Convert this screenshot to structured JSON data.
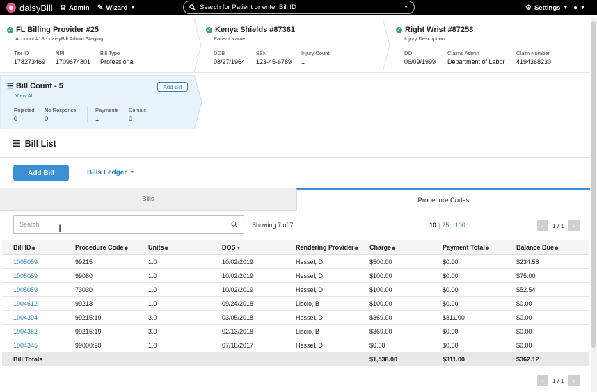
{
  "nav": {
    "brand": "daisyBill",
    "admin": "Admin",
    "wizard": "Wizard",
    "search_placeholder": "Search for Patient or enter Bill ID",
    "settings": "Settings"
  },
  "provider_card": {
    "title": "FL Billing Provider #25",
    "subtitle": "Account #18 - daisyBill Admin Staging",
    "tax_id_label": "Tax ID",
    "tax_id": "178273469",
    "npi_label": "NPI",
    "npi": "1709674801",
    "bill_type_label": "Bill Type",
    "bill_type": "Professional"
  },
  "patient_card": {
    "title": "Kenya Shields #87361",
    "subtitle": "Patient Name",
    "dob_label": "DOB",
    "dob": "08/27/1964",
    "ssn_label": "SSN",
    "ssn": "123-45-6789",
    "injury_count_label": "Injury Count",
    "injury_count": "1"
  },
  "injury_card": {
    "title": "Right Wrist #87258",
    "subtitle": "Injury Description",
    "doi_label": "DOI",
    "doi": "06/09/1999",
    "claims_admin_label": "Claims Admin",
    "claims_admin": "Department of Labor",
    "claim_number_label": "Claim Number",
    "claim_number": "4194368230"
  },
  "bill_count_card": {
    "title": "Bill Count - 5",
    "view_all": "View All",
    "add_bill": "Add Bill",
    "rejected_label": "Rejected",
    "rejected": "0",
    "no_response_label": "No Response",
    "no_response": "0",
    "payments_label": "Payments",
    "payments": "1",
    "denials_label": "Denials",
    "denials": "0"
  },
  "bill_list": {
    "title": "Bill List",
    "add_bill": "Add Bill",
    "ledger": "Bills Ledger",
    "tabs": {
      "bills": "Bills",
      "procedure_codes": "Procedure Codes"
    },
    "search_placeholder": "Search",
    "showing": "Showing 7 of 7",
    "per_page": [
      "10",
      "25",
      "100"
    ],
    "per_page_sep": "|",
    "page_text": "1 / 1",
    "prev": "‹",
    "next": "›"
  },
  "table": {
    "columns": [
      "Bill ID",
      "Procedure Code",
      "Units",
      "DOS",
      "Rendering Provider",
      "Charge",
      "Payment Total",
      "Balance Due"
    ],
    "rows": [
      [
        "1005059",
        "99215",
        "1.0",
        "10/02/2019",
        "Hessel, D",
        "$500.00",
        "$0.00",
        "$234.58"
      ],
      [
        "1005059",
        "99080",
        "1.0",
        "10/02/2019",
        "Hessel, D",
        "$100.00",
        "$0.00",
        "$75.00"
      ],
      [
        "1005059",
        "73030",
        "1.0",
        "10/02/2019",
        "Hessel, D",
        "$100.00",
        "$0.00",
        "$52.54"
      ],
      [
        "1004612",
        "99213",
        "1.0",
        "09/24/2018",
        "Liscio, B",
        "$100.00",
        "$0.00",
        "$0.00"
      ],
      [
        "1004394",
        "99215:19",
        "3.0",
        "03/05/2018",
        "Hessel, D",
        "$369.00",
        "$311.00",
        "$0.00"
      ],
      [
        "1004382",
        "99215:19",
        "3.0",
        "02/13/2018",
        "Liscio, B",
        "$369.00",
        "$0.00",
        "$0.00"
      ],
      [
        "1004345",
        "99000:20",
        "1.0",
        "07/18/2017",
        "Hessel, D",
        "$0.00",
        "$0.00",
        "$0.00"
      ]
    ],
    "totals_label": "Bill Totals",
    "totals": {
      "charge": "$1,538.00",
      "payment_total": "$311.00",
      "balance_due": "$362.12"
    }
  },
  "colors": {
    "accent": "#3a8fd6",
    "link": "#2d7fc1",
    "success": "#3aa57a",
    "brand_pink": "#e8508a",
    "bill_card_bg": "#e9f3fc"
  }
}
